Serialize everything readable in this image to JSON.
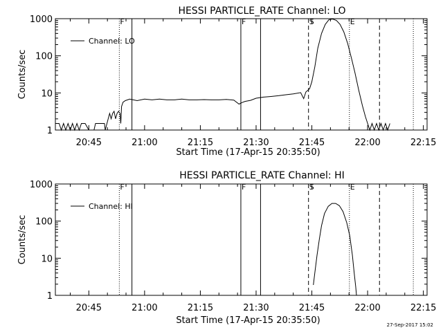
{
  "chart_data": [
    {
      "type": "line",
      "title": "HESSI PARTICLE_RATE Channel: LO",
      "xlabel": "Start Time (17-Apr-15 20:35:50)",
      "ylabel": "Counts/sec",
      "yscale": "log",
      "ylim": [
        1,
        1000
      ],
      "xlim_minutes": [
        36,
        136
      ],
      "x_ticks": [
        {
          "minute": 45,
          "label": "20:45"
        },
        {
          "minute": 60,
          "label": "21:00"
        },
        {
          "minute": 75,
          "label": "21:15"
        },
        {
          "minute": 90,
          "label": "21:30"
        },
        {
          "minute": 105,
          "label": "21:45"
        },
        {
          "minute": 120,
          "label": "22:00"
        },
        {
          "minute": 135,
          "label": "22:15"
        }
      ],
      "y_ticks": [
        {
          "value": 1,
          "label": "1"
        },
        {
          "value": 10,
          "label": "10"
        },
        {
          "value": 100,
          "label": "100"
        },
        {
          "value": 1000,
          "label": "1000"
        }
      ],
      "legend": "Channel: LO",
      "markers": [
        {
          "minute": 53.2,
          "style": "dotted",
          "label": "F"
        },
        {
          "minute": 56.6,
          "style": "solid",
          "label": ""
        },
        {
          "minute": 85.9,
          "style": "solid",
          "label": "F"
        },
        {
          "minute": 91.2,
          "style": "solid",
          "label": ""
        },
        {
          "minute": 104.1,
          "style": "dashed",
          "label": "S"
        },
        {
          "minute": 115.1,
          "style": "dotted",
          "label": "E"
        },
        {
          "minute": 123.2,
          "style": "dashed",
          "label": ""
        },
        {
          "minute": 132.3,
          "style": "dotted",
          "label": ""
        }
      ],
      "series": [
        {
          "name": "Channel: LO",
          "points": [
            [
              36.0,
              1.5
            ],
            [
              37.0,
              1.5
            ],
            [
              37.6,
              1.0
            ],
            [
              38.2,
              1.5
            ],
            [
              38.8,
              1.0
            ],
            [
              39.4,
              1.5
            ],
            [
              40.0,
              1.0
            ],
            [
              40.6,
              1.5
            ],
            [
              41.2,
              1.0
            ],
            [
              41.8,
              1.5
            ],
            [
              42.4,
              1.0
            ],
            [
              43.0,
              1.5
            ],
            [
              44.0,
              1.5
            ],
            [
              45.0,
              1.0
            ],
            [
              45.8,
              1.0
            ],
            [
              46.4,
              1.0
            ],
            [
              46.8,
              1.5
            ],
            [
              47.6,
              1.5
            ],
            [
              48.4,
              1.5
            ],
            [
              49.2,
              1.5
            ],
            [
              49.4,
              1.0
            ],
            [
              50.2,
              2.0
            ],
            [
              50.6,
              2.8
            ],
            [
              51.0,
              2.0
            ],
            [
              51.4,
              2.8
            ],
            [
              51.8,
              3.2
            ],
            [
              52.2,
              2.0
            ],
            [
              52.6,
              2.8
            ],
            [
              53.0,
              3.2
            ],
            [
              53.4,
              2.8
            ],
            [
              53.6,
              1.5
            ],
            [
              53.8,
              4.3
            ],
            [
              54.2,
              5.6
            ],
            [
              54.8,
              6.2
            ],
            [
              56.0,
              6.8
            ],
            [
              58.0,
              6.2
            ],
            [
              60.0,
              6.8
            ],
            [
              62.0,
              6.5
            ],
            [
              64.0,
              6.8
            ],
            [
              66.0,
              6.5
            ],
            [
              68.0,
              6.5
            ],
            [
              70.0,
              6.8
            ],
            [
              72.0,
              6.5
            ],
            [
              74.0,
              6.5
            ],
            [
              76.0,
              6.6
            ],
            [
              78.0,
              6.5
            ],
            [
              80.0,
              6.5
            ],
            [
              82.0,
              6.7
            ],
            [
              84.0,
              6.4
            ],
            [
              85.4,
              5.0
            ],
            [
              86.2,
              5.5
            ],
            [
              87.0,
              5.9
            ],
            [
              88.5,
              6.3
            ],
            [
              90.0,
              7.2
            ],
            [
              92.0,
              7.7
            ],
            [
              94.0,
              8.0
            ],
            [
              96.0,
              8.4
            ],
            [
              98.0,
              8.9
            ],
            [
              100.0,
              9.4
            ],
            [
              102.0,
              10.2
            ],
            [
              102.8,
              7.0
            ],
            [
              103.4,
              10.6
            ],
            [
              104.4,
              13.0
            ],
            [
              105.0,
              20.0
            ],
            [
              105.8,
              50.0
            ],
            [
              106.6,
              160.0
            ],
            [
              107.6,
              400.0
            ],
            [
              108.6,
              700.0
            ],
            [
              109.6,
              940.0
            ],
            [
              110.6,
              980.0
            ],
            [
              111.6,
              900.0
            ],
            [
              112.6,
              700.0
            ],
            [
              113.6,
              440.0
            ],
            [
              114.6,
              220.0
            ],
            [
              115.6,
              90.0
            ],
            [
              116.6,
              35.0
            ],
            [
              117.6,
              12.0
            ],
            [
              118.6,
              4.5
            ],
            [
              119.4,
              2.3
            ],
            [
              120.0,
              1.5
            ],
            [
              120.6,
              1.0
            ],
            [
              121.2,
              1.5
            ],
            [
              121.8,
              1.0
            ],
            [
              122.4,
              1.5
            ],
            [
              123.0,
              1.0
            ],
            [
              123.6,
              1.5
            ],
            [
              124.2,
              1.0
            ],
            [
              124.8,
              1.5
            ],
            [
              125.4,
              1.0
            ],
            [
              126.0,
              1.5
            ]
          ]
        }
      ]
    },
    {
      "type": "line",
      "title": "HESSI PARTICLE_RATE Channel: HI",
      "xlabel": "Start Time (17-Apr-15 20:35:50)",
      "ylabel": "Counts/sec",
      "yscale": "log",
      "ylim": [
        1,
        1000
      ],
      "xlim_minutes": [
        36,
        136
      ],
      "x_ticks": [
        {
          "minute": 45,
          "label": "20:45"
        },
        {
          "minute": 60,
          "label": "21:00"
        },
        {
          "minute": 75,
          "label": "21:15"
        },
        {
          "minute": 90,
          "label": "21:30"
        },
        {
          "minute": 105,
          "label": "21:45"
        },
        {
          "minute": 120,
          "label": "22:00"
        },
        {
          "minute": 135,
          "label": "22:15"
        }
      ],
      "y_ticks": [
        {
          "value": 1,
          "label": "1"
        },
        {
          "value": 10,
          "label": "10"
        },
        {
          "value": 100,
          "label": "100"
        },
        {
          "value": 1000,
          "label": "1000"
        }
      ],
      "legend": "Channel: HI",
      "markers": [
        {
          "minute": 53.2,
          "style": "dotted",
          "label": "F"
        },
        {
          "minute": 56.6,
          "style": "solid",
          "label": ""
        },
        {
          "minute": 85.9,
          "style": "solid",
          "label": "F"
        },
        {
          "minute": 91.2,
          "style": "solid",
          "label": ""
        },
        {
          "minute": 104.1,
          "style": "dashed",
          "label": "S"
        },
        {
          "minute": 115.1,
          "style": "dotted",
          "label": "E"
        },
        {
          "minute": 123.2,
          "style": "dashed",
          "label": ""
        },
        {
          "minute": 132.3,
          "style": "dotted",
          "label": ""
        }
      ],
      "series": [
        {
          "name": "Channel: HI",
          "points": [
            [
              105.4,
              1.9
            ],
            [
              105.8,
              4.0
            ],
            [
              106.4,
              12.0
            ],
            [
              107.0,
              32.0
            ],
            [
              107.6,
              75.0
            ],
            [
              108.4,
              160.0
            ],
            [
              109.4,
              250.0
            ],
            [
              110.4,
              300.0
            ],
            [
              111.4,
              300.0
            ],
            [
              112.4,
              260.0
            ],
            [
              113.4,
              180.0
            ],
            [
              114.4,
              90.0
            ],
            [
              115.2,
              40.0
            ],
            [
              115.9,
              12.0
            ],
            [
              116.4,
              4.0
            ],
            [
              116.8,
              1.7
            ],
            [
              117.0,
              1.0
            ]
          ]
        }
      ]
    }
  ],
  "footer": {
    "timestamp": "27-Sep-2017 15:02"
  }
}
